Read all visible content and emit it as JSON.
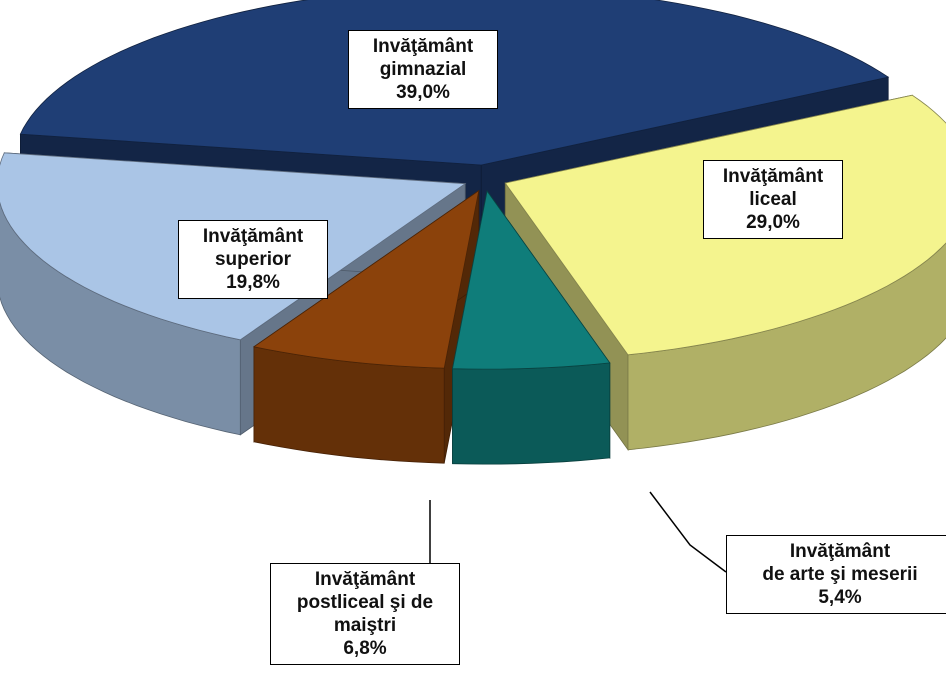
{
  "chart_data": {
    "type": "pie",
    "categories": [
      "Invăţământ\ngimnazial",
      "Invăţământ\nliceal",
      "Invăţământ\nde arte şi meserii",
      "Invăţământ\npostliceal şi de\nmaiştri",
      "Invăţământ\nsuperior"
    ],
    "values": [
      39.0,
      29.0,
      5.4,
      6.8,
      19.8
    ],
    "value_labels": [
      "39,0%",
      "29,0%",
      "5,4%",
      "6,8%",
      "19,8%"
    ],
    "colors": [
      "#1f3e75",
      "#f4f48e",
      "#0f7d7a",
      "#8b420b",
      "#aac5e6"
    ]
  }
}
